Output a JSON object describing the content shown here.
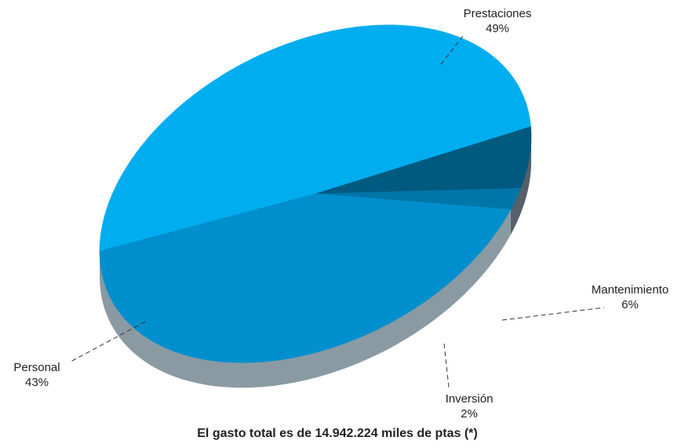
{
  "chart_data": {
    "type": "pie",
    "title": "",
    "caption": "El gasto total es de 14.942.224 miles de ptas (*)",
    "slices": [
      {
        "name": "Prestaciones",
        "label": "49%",
        "value": 49,
        "color": "#00adef"
      },
      {
        "name": "Mantenimiento",
        "label": "6%",
        "value": 6,
        "color": "#005a80"
      },
      {
        "name": "Inversión",
        "label": "2%",
        "value": 2,
        "color": "#0076a8"
      },
      {
        "name": "Personal",
        "label": "43%",
        "value": 43,
        "color": "#008fcd"
      }
    ],
    "style": {
      "three_d": true,
      "legend": "none",
      "side_colors": [
        "#8a9aa3",
        "#56606a"
      ]
    }
  }
}
